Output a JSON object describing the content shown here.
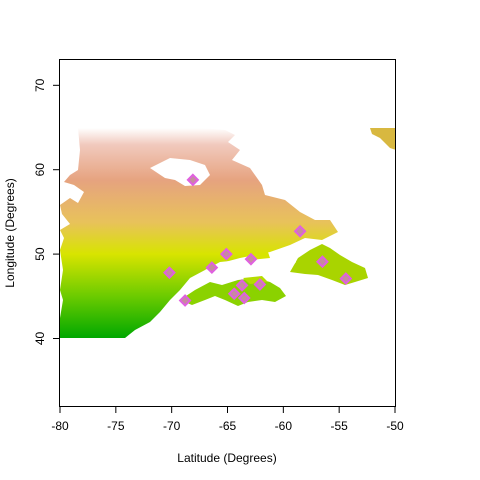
{
  "plot": {
    "xlabel": "Latitude (Degrees)",
    "ylabel": "Longitude (Degrees)",
    "xlim": [
      -80,
      -50
    ],
    "ylim": [
      32,
      73
    ],
    "x_ticks": [
      -80,
      -75,
      -70,
      -65,
      -60,
      -55,
      -50
    ],
    "y_ticks": [
      40,
      50,
      60,
      70
    ],
    "raster_colors": [
      "#00a800",
      "#6ccb00",
      "#d8e400",
      "#e8c25a",
      "#e6a37f",
      "#f1c9bd",
      "#ffffff"
    ],
    "marker_fill": "#c78aa0",
    "marker_edge": "#e060e0"
  },
  "chart_data": {
    "type": "scatter",
    "title": "",
    "xlabel": "Latitude (Degrees)",
    "ylabel": "Longitude (Degrees)",
    "xlim": [
      -80,
      -50
    ],
    "ylim": [
      32,
      73
    ],
    "grid": false,
    "series": [
      {
        "points": [
          {
            "x": -68.1,
            "y": 58.8
          },
          {
            "x": -58.5,
            "y": 52.7
          },
          {
            "x": -65.1,
            "y": 50.0
          },
          {
            "x": -62.9,
            "y": 49.4
          },
          {
            "x": -56.5,
            "y": 49.1
          },
          {
            "x": -66.4,
            "y": 48.4
          },
          {
            "x": -70.2,
            "y": 47.8
          },
          {
            "x": -54.4,
            "y": 47.1
          },
          {
            "x": -63.7,
            "y": 46.3
          },
          {
            "x": -62.1,
            "y": 46.4
          },
          {
            "x": -64.4,
            "y": 45.3
          },
          {
            "x": -63.5,
            "y": 44.8
          },
          {
            "x": -68.8,
            "y": 44.5
          }
        ]
      }
    ]
  }
}
